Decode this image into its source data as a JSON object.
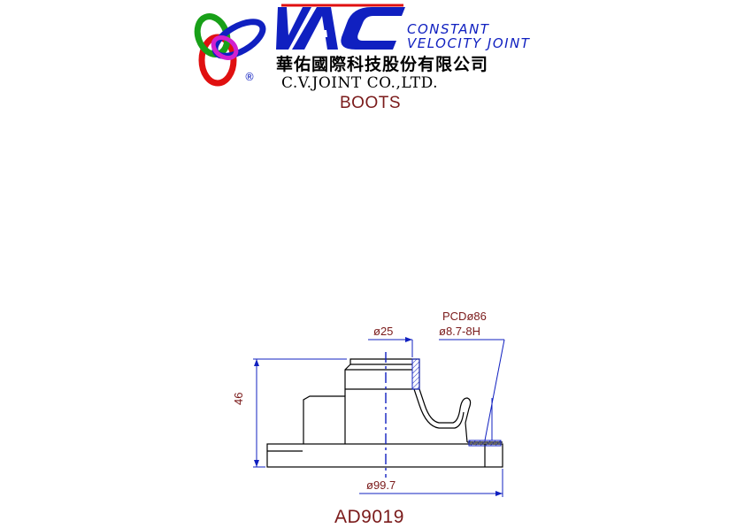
{
  "header": {
    "brand": "VAC",
    "tagline_line1": "CONSTANT",
    "tagline_line2": "VELOCITY JOINT",
    "company_cn": "華佑國際科技股份有限公司",
    "company_en": "C.V.JOINT CO.,LTD.",
    "registered_mark": "®"
  },
  "category": "BOOTS",
  "drawing": {
    "dims": {
      "pcd": "PCDø86",
      "bolt_hole": "ø8.7-8H",
      "inner_diameter": "ø25",
      "height": "46",
      "outer_diameter": "ø99.7"
    },
    "colors": {
      "outline": "#000000",
      "dimension": "#1020c0",
      "text": "#7a1a1a"
    }
  },
  "part_number": "AD9019"
}
